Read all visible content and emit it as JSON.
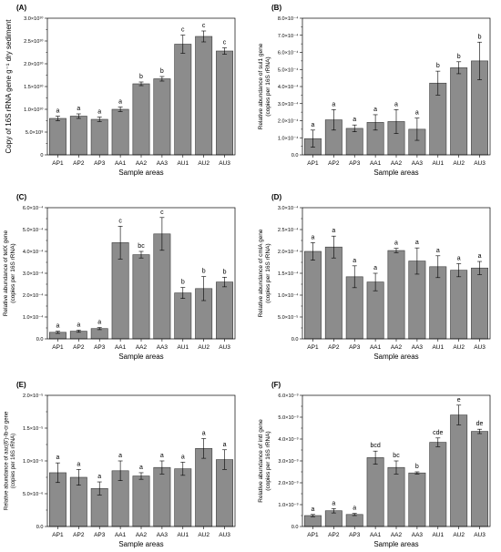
{
  "chart_data": [
    {
      "panel": "(A)",
      "type": "bar",
      "categories": [
        "AP1",
        "AP2",
        "AP3",
        "AA1",
        "AA2",
        "AA3",
        "AU1",
        "AU2",
        "AU3"
      ],
      "values": [
        0.8,
        0.85,
        0.78,
        1.0,
        1.56,
        1.67,
        2.43,
        2.6,
        2.28
      ],
      "errors": [
        0.05,
        0.05,
        0.05,
        0.05,
        0.04,
        0.05,
        0.2,
        0.12,
        0.07
      ],
      "letters": [
        "a",
        "a",
        "a",
        "a",
        "b",
        "b",
        "c",
        "c",
        "c"
      ],
      "ylim": [
        0,
        3
      ],
      "yticks": [
        0,
        0.5,
        1,
        1.5,
        2,
        2.5,
        3
      ],
      "ytick_labels": [
        "0",
        "5.0×10⁹",
        "1.0×10¹⁰",
        "1.5×10¹⁰",
        "2.0×10¹⁰",
        "2.5×10¹⁰",
        "3.0×10¹⁰"
      ],
      "xlabel": "Sample areas",
      "ylabel": [
        "Copy of 16S rRNA gene  g⁻¹ dry sediment"
      ],
      "ylabel_size": 8
    },
    {
      "panel": "(B)",
      "type": "bar",
      "categories": [
        "AP1",
        "AP2",
        "AP3",
        "AA1",
        "AA2",
        "AA3",
        "AU1",
        "AU2",
        "AU3"
      ],
      "values": [
        0.95,
        2.05,
        1.55,
        1.9,
        1.95,
        1.5,
        4.2,
        5.1,
        5.5
      ],
      "errors": [
        0.5,
        0.6,
        0.2,
        0.45,
        0.7,
        0.65,
        0.7,
        0.35,
        1.1
      ],
      "letters": [
        "a",
        "a",
        "a",
        "a",
        "a",
        "a",
        "b",
        "b",
        "b"
      ],
      "ylim": [
        0,
        8
      ],
      "yticks": [
        0,
        1,
        2,
        3,
        4,
        5,
        6,
        7,
        8
      ],
      "ytick_labels": [
        "0.0",
        "1.0×10⁻⁴",
        "2.0×10⁻⁴",
        "3.0×10⁻⁴",
        "4.0×10⁻⁴",
        "5.0×10⁻⁴",
        "6.0×10⁻⁴",
        "7.0×10⁻⁴",
        "8.0×10⁻⁴"
      ],
      "xlabel": "Sample areas",
      "ylabel": [
        "Relative abundance of sul1 gene",
        "(copies per 16S rRNA)"
      ],
      "ylabel_size": 6.5
    },
    {
      "panel": "(C)",
      "type": "bar",
      "categories": [
        "AP1",
        "AP2",
        "AP3",
        "AA1",
        "AA2",
        "AA3",
        "AU1",
        "AU2",
        "AU3"
      ],
      "values": [
        0.3,
        0.35,
        0.47,
        4.4,
        3.85,
        4.8,
        2.1,
        2.3,
        2.6
      ],
      "errors": [
        0.05,
        0.05,
        0.05,
        0.75,
        0.15,
        0.75,
        0.25,
        0.55,
        0.22
      ],
      "letters": [
        "a",
        "a",
        "a",
        "c",
        "bc",
        "c",
        "b",
        "b",
        "b"
      ],
      "ylim": [
        0,
        6
      ],
      "yticks": [
        0,
        1,
        2,
        3,
        4,
        5,
        6
      ],
      "ytick_labels": [
        "0.0",
        "1.0×10⁻⁴",
        "2.0×10⁻⁴",
        "3.0×10⁻⁴",
        "4.0×10⁻⁴",
        "5.0×10⁻⁴",
        "6.0×10⁻⁴"
      ],
      "xlabel": "Sample areas",
      "ylabel": [
        "Relative abundance of tetX gene",
        "(copies per 16S rRNA)"
      ],
      "ylabel_size": 6.5
    },
    {
      "panel": "(D)",
      "type": "bar",
      "categories": [
        "AP1",
        "AP2",
        "AP3",
        "AA1",
        "AA2",
        "AA3",
        "AU1",
        "AU2",
        "AU3"
      ],
      "values": [
        2.0,
        2.1,
        1.42,
        1.3,
        2.02,
        1.78,
        1.65,
        1.57,
        1.62
      ],
      "errors": [
        0.2,
        0.25,
        0.25,
        0.2,
        0.05,
        0.3,
        0.25,
        0.15,
        0.15
      ],
      "letters": [
        "a",
        "a",
        "a",
        "a",
        "a",
        "a",
        "a",
        "a",
        "a"
      ],
      "ylim": [
        0,
        3
      ],
      "yticks": [
        0,
        0.5,
        1,
        1.5,
        2,
        2.5,
        3
      ],
      "ytick_labels": [
        "0.0",
        "5.0×10⁻⁵",
        "1.0×10⁻⁴",
        "1.5×10⁻⁴",
        "2.0×10⁻⁴",
        "2.5×10⁻⁴",
        "3.0×10⁻⁴"
      ],
      "xlabel": "Sample areas",
      "ylabel": [
        "Relative abundance of cmlA gene",
        "(copies per 16S rRNA)"
      ],
      "ylabel_size": 6.5
    },
    {
      "panel": "(E)",
      "type": "bar",
      "categories": [
        "AP1",
        "AP2",
        "AP3",
        "AA1",
        "AA2",
        "AA3",
        "AU1",
        "AU2",
        "AU3"
      ],
      "values": [
        0.82,
        0.75,
        0.58,
        0.85,
        0.77,
        0.9,
        0.88,
        1.19,
        1.02
      ],
      "errors": [
        0.15,
        0.12,
        0.1,
        0.15,
        0.05,
        0.1,
        0.1,
        0.15,
        0.15
      ],
      "letters": [
        "a",
        "a",
        "a",
        "a",
        "a",
        "a",
        "a",
        "a",
        "a"
      ],
      "ylim": [
        0,
        2
      ],
      "yticks": [
        0,
        0.5,
        1,
        1.5,
        2
      ],
      "ytick_labels": [
        "0.0",
        "5.0×10⁻⁶",
        "1.0×10⁻⁵",
        "1.5×10⁻⁵",
        "2.0×10⁻⁵"
      ],
      "xlabel": "Sample areas",
      "ylabel": [
        "Relative abundance of aac(6')-Ib-cr gene",
        "(copies per 16S rRNA)"
      ],
      "ylabel_size": 6
    },
    {
      "panel": "(F)",
      "type": "bar",
      "categories": [
        "AP1",
        "AP2",
        "AP3",
        "AA1",
        "AA2",
        "AA3",
        "AU1",
        "AU2",
        "AU3"
      ],
      "values": [
        0.5,
        0.72,
        0.55,
        3.15,
        2.7,
        2.45,
        3.85,
        5.1,
        4.35
      ],
      "errors": [
        0.05,
        0.1,
        0.05,
        0.3,
        0.3,
        0.05,
        0.2,
        0.45,
        0.1
      ],
      "letters": [
        "a",
        "a",
        "a",
        "bcd",
        "bc",
        "b",
        "cde",
        "e",
        "de"
      ],
      "ylim": [
        0,
        6
      ],
      "yticks": [
        0,
        1,
        2,
        3,
        4,
        5,
        6
      ],
      "ytick_labels": [
        "0.0",
        "1.0×10⁻³",
        "2.0×10⁻³",
        "3.0×10⁻³",
        "4.0×10⁻³",
        "5.0×10⁻³",
        "6.0×10⁻³"
      ],
      "xlabel": "Sample areas",
      "ylabel": [
        "Relative abundance of intI gene",
        "(copies per 16S rRNA)"
      ],
      "ylabel_size": 6.5
    }
  ],
  "colors": {
    "bar_fill": "#8c8c8c",
    "bar_stroke": "#3a3a3a",
    "axis": "#000000"
  }
}
